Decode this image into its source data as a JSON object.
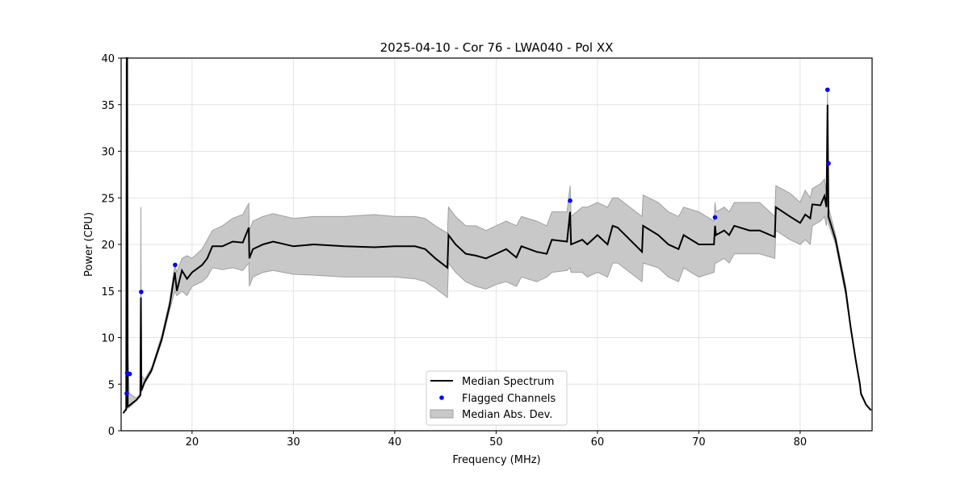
{
  "chart_data": {
    "type": "line",
    "title": "2025-04-10 - Cor 76 - LWA040 - Pol XX",
    "xlabel": "Frequency (MHz)",
    "ylabel": "Power (CPU)",
    "xlim": [
      13.0,
      87.1
    ],
    "ylim": [
      0,
      40
    ],
    "xticks": [
      20,
      30,
      40,
      50,
      60,
      70,
      80
    ],
    "yticks": [
      0,
      5,
      10,
      15,
      20,
      25,
      30,
      35,
      40
    ],
    "grid": true,
    "legend": {
      "placement": "lower-center",
      "entries": [
        "Median Spectrum",
        "Flagged Channels",
        "Median Abs. Dev."
      ]
    },
    "colors": {
      "median": "#000000",
      "flagged": "#0000ff",
      "band": "#c8c8c8",
      "band_edge": "#a0a0a0"
    },
    "columns": [
      "freq_mhz",
      "median",
      "lower",
      "upper"
    ],
    "spectrum": [
      [
        13.2,
        1.9,
        1.9,
        1.9
      ],
      [
        13.5,
        2.3,
        2.2,
        2.5
      ],
      [
        13.55,
        40,
        5,
        40
      ],
      [
        13.6,
        40,
        5,
        40
      ],
      [
        13.65,
        2.6,
        2.4,
        9
      ],
      [
        13.8,
        2.7,
        2.5,
        4
      ],
      [
        14.5,
        3.3,
        3.2,
        3.5
      ],
      [
        14.9,
        3.8,
        3.7,
        4
      ],
      [
        14.95,
        14.3,
        4,
        24
      ],
      [
        15.0,
        4.3,
        4.1,
        6
      ],
      [
        15.3,
        5.2,
        5,
        5.5
      ],
      [
        16,
        6.5,
        6.3,
        6.8
      ],
      [
        17,
        9.8,
        9.5,
        10.2
      ],
      [
        17.8,
        13.5,
        13,
        14
      ],
      [
        18.3,
        17,
        15,
        17.8
      ],
      [
        18.5,
        15,
        14.5,
        17
      ],
      [
        19,
        17.2,
        15,
        18.5
      ],
      [
        19.5,
        16.3,
        14.5,
        18.8
      ],
      [
        20,
        17,
        15.5,
        18.5
      ],
      [
        21,
        17.8,
        16,
        19.5
      ],
      [
        21.5,
        18.5,
        16.5,
        20.5
      ],
      [
        22,
        19.8,
        17.5,
        21.5
      ],
      [
        23,
        19.8,
        17.3,
        22
      ],
      [
        24,
        20.3,
        17.5,
        22.8
      ],
      [
        25,
        20.2,
        17.2,
        23.2
      ],
      [
        25.6,
        21.8,
        18,
        24.4
      ],
      [
        25.65,
        18.5,
        15.5,
        21.5
      ],
      [
        26,
        19.5,
        16.5,
        22.5
      ],
      [
        27,
        20,
        17,
        23
      ],
      [
        28,
        20.3,
        17.2,
        23.3
      ],
      [
        30,
        19.8,
        16.8,
        22.8
      ],
      [
        32,
        20,
        16.7,
        23
      ],
      [
        35,
        19.8,
        16.5,
        23
      ],
      [
        38,
        19.7,
        16.5,
        23.2
      ],
      [
        40,
        19.8,
        16.5,
        23
      ],
      [
        42,
        19.8,
        16.3,
        23
      ],
      [
        43,
        19.5,
        16,
        22.8
      ],
      [
        44,
        18.5,
        15.3,
        22
      ],
      [
        45.2,
        17.5,
        14.3,
        21.2
      ],
      [
        45.3,
        21,
        18,
        24
      ],
      [
        46,
        20,
        17,
        23
      ],
      [
        47,
        19,
        16,
        22
      ],
      [
        48,
        18.8,
        15.5,
        22
      ],
      [
        49,
        18.5,
        15.2,
        21.5
      ],
      [
        50,
        19,
        15.7,
        22
      ],
      [
        51,
        19.5,
        16,
        22.5
      ],
      [
        52,
        18.6,
        15.5,
        22
      ],
      [
        52.5,
        19.8,
        16.5,
        23
      ],
      [
        54,
        19.2,
        16,
        22.5
      ],
      [
        55,
        19,
        16.5,
        22
      ],
      [
        55.5,
        20.5,
        17,
        23.5
      ],
      [
        57,
        20.3,
        17.2,
        23.5
      ],
      [
        57.3,
        23.5,
        17.5,
        26.3
      ],
      [
        57.4,
        20,
        17,
        23
      ],
      [
        58.5,
        20.5,
        17,
        24
      ],
      [
        59,
        20,
        16.5,
        24
      ],
      [
        60,
        21,
        17,
        24.5
      ],
      [
        61,
        20,
        16.5,
        24
      ],
      [
        61.5,
        22,
        18,
        25
      ],
      [
        62,
        21.8,
        18,
        25
      ],
      [
        64.4,
        19.2,
        16,
        23
      ],
      [
        64.5,
        22,
        18,
        25.3
      ],
      [
        66,
        21,
        17.5,
        24.5
      ],
      [
        67,
        20,
        16.5,
        23.5
      ],
      [
        68,
        19.5,
        16,
        23
      ],
      [
        68.5,
        21,
        17.5,
        24
      ],
      [
        70,
        20,
        16.5,
        23.5
      ],
      [
        71.5,
        20,
        17,
        22.5
      ],
      [
        71.6,
        22,
        18,
        24.5
      ],
      [
        71.7,
        21,
        18,
        23.5
      ],
      [
        72.5,
        21.5,
        18.5,
        24
      ],
      [
        73,
        21,
        18,
        23.5
      ],
      [
        73.5,
        22,
        19,
        24.5
      ],
      [
        75,
        21.5,
        19,
        24.5
      ],
      [
        76,
        21.5,
        19,
        24.5
      ],
      [
        77.5,
        20.8,
        18.5,
        23
      ],
      [
        77.6,
        24,
        21.5,
        26.3
      ],
      [
        79,
        23,
        20.5,
        25.5
      ],
      [
        80,
        22.3,
        20,
        24.5
      ],
      [
        80.5,
        23.2,
        20.5,
        25.8
      ],
      [
        81,
        22.8,
        20,
        25
      ],
      [
        81.2,
        24.3,
        22,
        26
      ],
      [
        82,
        24.2,
        22.5,
        26.5
      ],
      [
        82.4,
        25.2,
        23,
        27
      ],
      [
        82.6,
        24,
        22,
        25.5
      ],
      [
        82.7,
        35,
        23.5,
        36.6
      ],
      [
        82.8,
        23,
        22.2,
        24
      ],
      [
        83.5,
        20.5,
        20,
        21
      ],
      [
        84.5,
        15,
        14.5,
        15.5
      ],
      [
        85,
        11,
        10.7,
        11.2
      ],
      [
        85.5,
        7.5,
        7.3,
        7.7
      ],
      [
        85.9,
        5,
        4.8,
        5.2
      ],
      [
        86,
        4,
        3.8,
        4.1
      ],
      [
        86.5,
        2.8,
        2.8,
        2.8
      ],
      [
        87,
        2.2,
        2.2,
        2.2
      ]
    ],
    "flagged": [
      [
        13.55,
        4.0
      ],
      [
        13.6,
        6.2
      ],
      [
        13.85,
        6.1
      ],
      [
        14.98,
        14.9
      ],
      [
        18.33,
        17.8
      ],
      [
        57.3,
        24.7
      ],
      [
        71.6,
        22.9
      ],
      [
        82.7,
        36.6
      ],
      [
        82.8,
        28.7
      ]
    ]
  }
}
